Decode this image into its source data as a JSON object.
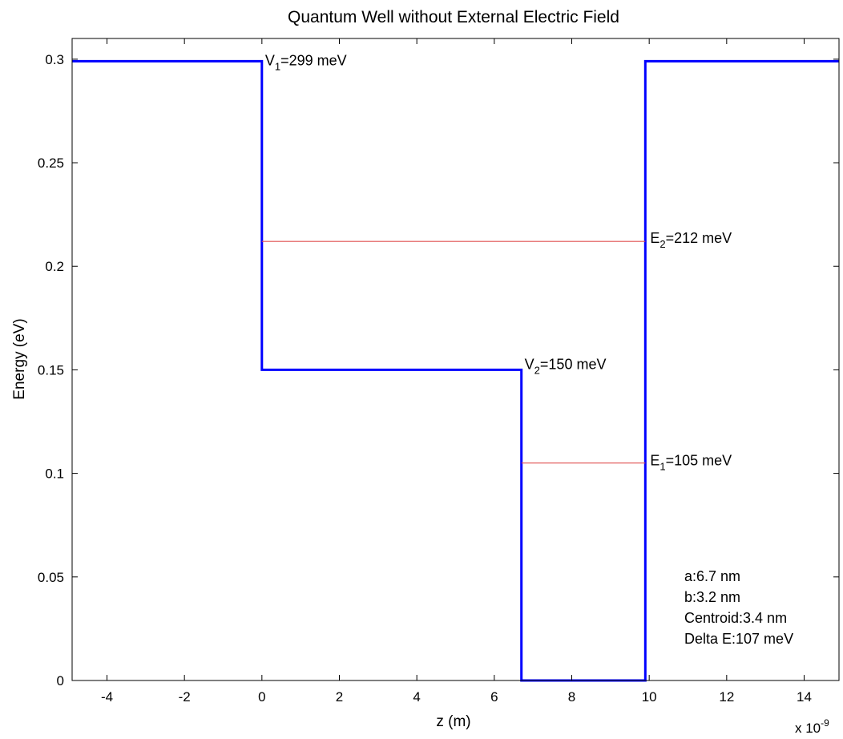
{
  "chart_data": {
    "type": "line",
    "title": "Quantum Well without External Electric Field",
    "xlabel": "z (m)",
    "ylabel": "Energy (eV)",
    "x_multiplier": {
      "base": "x 10",
      "exponent": "-9"
    },
    "xlim": [
      -4.9,
      14.9
    ],
    "ylim": [
      0,
      0.31
    ],
    "xticks": [
      -4,
      -2,
      0,
      2,
      4,
      6,
      8,
      10,
      12,
      14
    ],
    "yticks": [
      0,
      0.05,
      0.1,
      0.15,
      0.2,
      0.25,
      0.3
    ],
    "ytick_labels": [
      "0",
      "0.05",
      "0.1",
      "0.15",
      "0.2",
      "0.25",
      "0.3"
    ],
    "grid": false,
    "series": [
      {
        "role": "potential",
        "color": "#0000ff",
        "x": [
          -4.9,
          0,
          0,
          6.7,
          6.7,
          9.9,
          9.9,
          14.9
        ],
        "y": [
          0.299,
          0.299,
          0.15,
          0.15,
          0,
          0,
          0.299,
          0.299
        ]
      },
      {
        "role": "level-E2",
        "color": "#e05050",
        "x": [
          0,
          9.9
        ],
        "y": [
          0.212,
          0.212
        ]
      },
      {
        "role": "level-E1",
        "color": "#e05050",
        "x": [
          6.7,
          9.9
        ],
        "y": [
          0.105,
          0.105
        ]
      }
    ],
    "annotations": [
      {
        "id": "v1",
        "main": "V",
        "sub": "1",
        "rest": "=299 meV",
        "x": 0,
        "y": 0.299
      },
      {
        "id": "v2",
        "main": "V",
        "sub": "2",
        "rest": "=150 meV",
        "x": 6.7,
        "y": 0.15
      },
      {
        "id": "e2",
        "main": "E",
        "sub": "2",
        "rest": "=212 meV",
        "x": 9.9,
        "y": 0.212
      },
      {
        "id": "e1",
        "main": "E",
        "sub": "1",
        "rest": "=105 meV",
        "x": 9.9,
        "y": 0.105
      }
    ],
    "info_lines": [
      "a:6.7 nm",
      "b:3.2 nm",
      "Centroid:3.4 nm",
      "Delta E:107 meV"
    ]
  }
}
